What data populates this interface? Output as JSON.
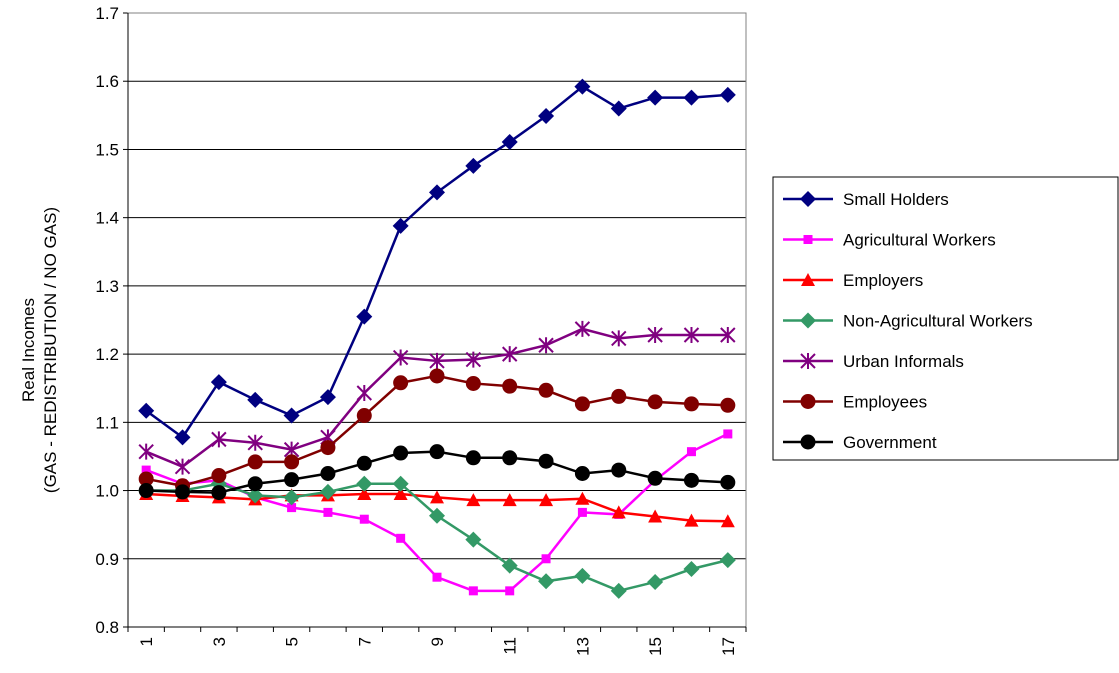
{
  "chart_data": {
    "type": "line",
    "y_label": [
      "Real Incomes",
      "(GAS - REDISTRIBUTION / NO GAS)"
    ],
    "categories": [
      "1",
      null,
      "3",
      null,
      "5",
      null,
      "7",
      null,
      "9",
      null,
      "11",
      null,
      "13",
      null,
      "15",
      null,
      "17"
    ],
    "ylim": [
      0.8,
      1.7
    ],
    "yticks": [
      0.8,
      0.9,
      {
        "value": 1,
        "label": "1.0"
      },
      1.1,
      1.2,
      1.3,
      1.4,
      1.5,
      1.6,
      1.7
    ],
    "grid": true,
    "legend": "right",
    "series": [
      {
        "name": "Small Holders",
        "color": "#000080",
        "marker": "diamond",
        "values": [
          1.117,
          1.078,
          1.159,
          1.133,
          1.11,
          1.137,
          1.255,
          1.388,
          1.437,
          1.476,
          1.511,
          1.549,
          1.592,
          1.56,
          1.576,
          1.576,
          1.58
        ]
      },
      {
        "name": "Agricultural Workers",
        "color": "#ff00ff",
        "marker": "square",
        "values": [
          1.03,
          1.01,
          1.015,
          0.99,
          0.975,
          0.968,
          0.958,
          0.93,
          0.873,
          0.853,
          0.853,
          0.9,
          0.968,
          0.965,
          1.015,
          1.057,
          1.083
        ]
      },
      {
        "name": "Employers",
        "color": "#ff0000",
        "marker": "triangle",
        "values": [
          0.995,
          0.992,
          0.99,
          0.987,
          0.993,
          0.993,
          0.995,
          0.995,
          0.99,
          0.986,
          0.986,
          0.986,
          0.988,
          0.968,
          0.962,
          0.956,
          0.955
        ]
      },
      {
        "name": "Non-Agricultural Workers",
        "color": "#339966",
        "marker": "diamond",
        "values": [
          1.0,
          1.0,
          1.01,
          0.993,
          0.99,
          0.998,
          1.01,
          1.01,
          0.963,
          0.928,
          0.89,
          0.867,
          0.875,
          0.853,
          0.866,
          0.885,
          0.898
        ]
      },
      {
        "name": "Urban Informals",
        "color": "#800080",
        "marker": "star",
        "values": [
          1.057,
          1.035,
          1.075,
          1.07,
          1.06,
          1.078,
          1.143,
          1.195,
          1.19,
          1.192,
          1.2,
          1.213,
          1.237,
          1.223,
          1.228,
          1.228,
          1.228
        ]
      },
      {
        "name": "Employees",
        "color": "#800000",
        "marker": "circle",
        "values": [
          1.017,
          1.007,
          1.022,
          1.042,
          1.042,
          1.063,
          1.11,
          1.158,
          1.168,
          1.157,
          1.153,
          1.147,
          1.127,
          1.138,
          1.13,
          1.127,
          1.125
        ]
      },
      {
        "name": "Government",
        "color": "#000000",
        "marker": "circle",
        "values": [
          1.0,
          0.998,
          0.997,
          1.01,
          1.016,
          1.025,
          1.04,
          1.055,
          1.057,
          1.048,
          1.048,
          1.043,
          1.025,
          1.03,
          1.018,
          1.015,
          1.012
        ]
      }
    ]
  }
}
